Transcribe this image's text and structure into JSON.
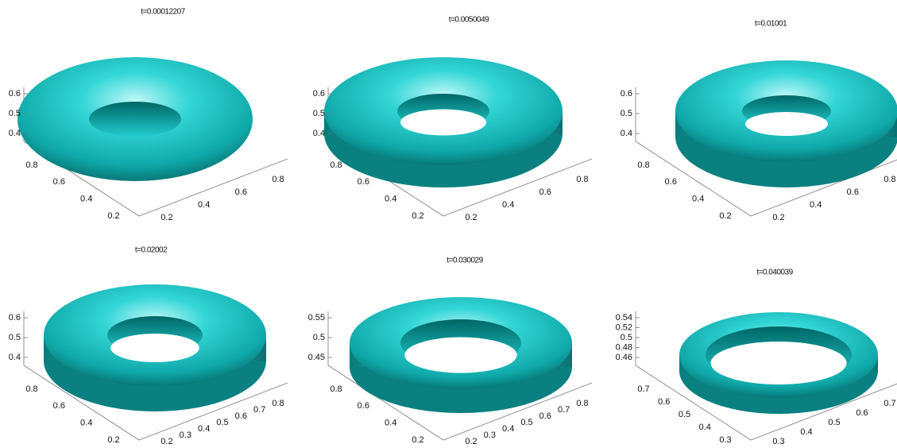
{
  "panels": [
    {
      "title": "t=0.00012207",
      "z_ticks": [
        "0.4",
        "0.5",
        "0.6"
      ],
      "y_ticks": [
        "0.2",
        "0.4",
        "0.6",
        "0.8"
      ],
      "x_ticks": [
        "0.2",
        "0.4",
        "0.6",
        "0.8"
      ]
    },
    {
      "title": "t=0.0050049",
      "z_ticks": [
        "0.4",
        "0.5",
        "0.6"
      ],
      "y_ticks": [
        "0.2",
        "0.4",
        "0.6",
        "0.8"
      ],
      "x_ticks": [
        "0.2",
        "0.4",
        "0.6",
        "0.8"
      ]
    },
    {
      "title": "t=0.01001",
      "z_ticks": [
        "0.4",
        "0.5",
        "0.6"
      ],
      "y_ticks": [
        "0.2",
        "0.4",
        "0.6",
        "0.8"
      ],
      "x_ticks": [
        "0.2",
        "0.4",
        "0.6",
        "0.8"
      ]
    },
    {
      "title": "t=0.02002",
      "z_ticks": [
        "0.4",
        "0.5",
        "0.6"
      ],
      "y_ticks": [
        "0.2",
        "0.4",
        "0.6",
        "0.8"
      ],
      "x_ticks": [
        "0.2",
        "0.3",
        "0.4",
        "0.5",
        "0.6",
        "0.7",
        "0.8"
      ]
    },
    {
      "title": "t=0.030029",
      "z_ticks": [
        "0.45",
        "0.5",
        "0.55"
      ],
      "y_ticks": [
        "0.2",
        "0.4",
        "0.6",
        "0.8"
      ],
      "x_ticks": [
        "0.2",
        "0.3",
        "0.4",
        "0.5",
        "0.6",
        "0.7",
        "0.8"
      ]
    },
    {
      "title": "t=0.040039",
      "z_ticks": [
        "0.46",
        "0.48",
        "0.5",
        "0.52",
        "0.54"
      ],
      "y_ticks": [
        "0.3",
        "0.4",
        "0.5",
        "0.6",
        "0.7"
      ],
      "x_ticks": [
        "0.3",
        "0.4",
        "0.5",
        "0.6",
        "0.7"
      ]
    }
  ]
}
